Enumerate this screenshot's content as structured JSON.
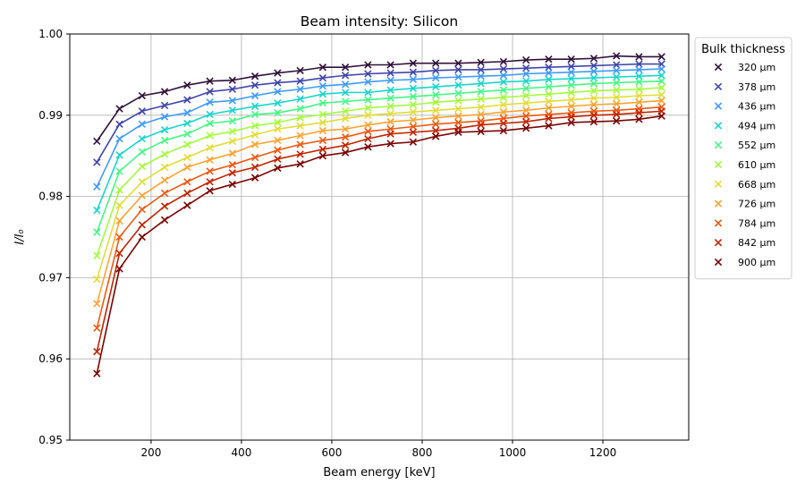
{
  "chart_data": {
    "type": "line",
    "title": "Beam intensity: Silicon",
    "xlabel": "Beam energy [keV]",
    "ylabel": "I/I₀",
    "xlim": [
      20,
      1390
    ],
    "ylim": [
      0.95,
      1.0
    ],
    "grid": true,
    "x_ticks": [
      200,
      400,
      600,
      800,
      1000,
      1200
    ],
    "x_tick_labels": [
      "200",
      "400",
      "600",
      "800",
      "1000",
      "1200"
    ],
    "y_ticks": [
      0.95,
      0.96,
      0.97,
      0.98,
      0.99,
      1.0
    ],
    "y_tick_labels": [
      "0.95",
      "0.96",
      "0.97",
      "0.98",
      "0.99",
      "1.00"
    ],
    "legend_title": "Bulk thickness",
    "legend_position": "outside-right",
    "marker": "x",
    "x": [
      80,
      130,
      180,
      230,
      280,
      330,
      380,
      430,
      480,
      530,
      580,
      630,
      680,
      730,
      780,
      830,
      880,
      930,
      980,
      1030,
      1080,
      1130,
      1180,
      1230,
      1280,
      1330
    ],
    "series": [
      {
        "name": "320 μm",
        "color": "#30123b",
        "values": [
          0.9868,
          0.9908,
          0.9924,
          0.9929,
          0.9937,
          0.9942,
          0.9943,
          0.9948,
          0.9952,
          0.9955,
          0.9959,
          0.9959,
          0.9962,
          0.9962,
          0.9964,
          0.9964,
          0.9964,
          0.9965,
          0.9966,
          0.9968,
          0.9969,
          0.9969,
          0.997,
          0.9973,
          0.9972,
          0.9972
        ]
      },
      {
        "name": "378 μm",
        "color": "#4145ab",
        "values": [
          0.9842,
          0.9889,
          0.9905,
          0.9912,
          0.9919,
          0.9929,
          0.9932,
          0.9937,
          0.994,
          0.9942,
          0.9946,
          0.9949,
          0.9951,
          0.9952,
          0.9953,
          0.9955,
          0.9956,
          0.9956,
          0.9957,
          0.9958,
          0.9959,
          0.996,
          0.9961,
          0.9962,
          0.9963,
          0.9963
        ]
      },
      {
        "name": "436 μm",
        "color": "#3e9bfe",
        "values": [
          0.9812,
          0.9871,
          0.9889,
          0.9898,
          0.9903,
          0.9916,
          0.9918,
          0.9924,
          0.9929,
          0.9932,
          0.9936,
          0.9938,
          0.9941,
          0.9943,
          0.9944,
          0.9946,
          0.9947,
          0.9948,
          0.9949,
          0.9951,
          0.9952,
          0.9953,
          0.9954,
          0.9955,
          0.9956,
          0.9957
        ]
      },
      {
        "name": "494 μm",
        "color": "#18d6cb",
        "values": [
          0.9783,
          0.9851,
          0.9871,
          0.9882,
          0.989,
          0.9901,
          0.9906,
          0.9911,
          0.9915,
          0.992,
          0.9926,
          0.9928,
          0.9928,
          0.9931,
          0.9933,
          0.9935,
          0.9937,
          0.9939,
          0.9941,
          0.9942,
          0.9944,
          0.9945,
          0.9946,
          0.9947,
          0.9948,
          0.9949
        ]
      },
      {
        "name": "552 μm",
        "color": "#46f884",
        "values": [
          0.9756,
          0.9831,
          0.9855,
          0.9869,
          0.9877,
          0.989,
          0.9893,
          0.9901,
          0.9903,
          0.9908,
          0.9915,
          0.9917,
          0.9919,
          0.9921,
          0.9923,
          0.9925,
          0.9927,
          0.9929,
          0.9931,
          0.9933,
          0.9935,
          0.9937,
          0.9939,
          0.994,
          0.9941,
          0.9942
        ]
      },
      {
        "name": "610 μm",
        "color": "#a2fc3c",
        "values": [
          0.9727,
          0.9808,
          0.9837,
          0.9852,
          0.9864,
          0.9875,
          0.988,
          0.9887,
          0.9891,
          0.9897,
          0.9901,
          0.9905,
          0.9909,
          0.9911,
          0.9913,
          0.9916,
          0.9918,
          0.992,
          0.9922,
          0.9924,
          0.9926,
          0.9928,
          0.993,
          0.9931,
          0.9932,
          0.9934
        ]
      },
      {
        "name": "668 μm",
        "color": "#e1dd37",
        "values": [
          0.9698,
          0.9789,
          0.9818,
          0.9836,
          0.9848,
          0.986,
          0.9868,
          0.9876,
          0.9883,
          0.9887,
          0.9891,
          0.9896,
          0.99,
          0.9902,
          0.9904,
          0.9906,
          0.9908,
          0.991,
          0.9913,
          0.9915,
          0.9917,
          0.9919,
          0.9921,
          0.9922,
          0.9924,
          0.9925
        ]
      },
      {
        "name": "726 μm",
        "color": "#fea331",
        "values": [
          0.9668,
          0.977,
          0.9801,
          0.982,
          0.9836,
          0.9845,
          0.9853,
          0.9864,
          0.9869,
          0.9875,
          0.9881,
          0.9883,
          0.9888,
          0.9892,
          0.9894,
          0.9897,
          0.9899,
          0.9901,
          0.9904,
          0.9906,
          0.9909,
          0.9911,
          0.9913,
          0.9914,
          0.9916,
          0.9918
        ]
      },
      {
        "name": "784 μm",
        "color": "#ef5911",
        "values": [
          0.9638,
          0.975,
          0.9784,
          0.9804,
          0.9818,
          0.9831,
          0.9839,
          0.9848,
          0.9857,
          0.9864,
          0.9869,
          0.9873,
          0.988,
          0.9883,
          0.9886,
          0.9889,
          0.9891,
          0.9893,
          0.9896,
          0.9899,
          0.9901,
          0.9903,
          0.9905,
          0.9906,
          0.9908,
          0.991
        ]
      },
      {
        "name": "842 μm",
        "color": "#c22402",
        "values": [
          0.9609,
          0.973,
          0.9765,
          0.9788,
          0.9804,
          0.9818,
          0.9829,
          0.9836,
          0.9846,
          0.9852,
          0.9858,
          0.9863,
          0.9871,
          0.9877,
          0.9879,
          0.9881,
          0.9884,
          0.9888,
          0.989,
          0.9892,
          0.9896,
          0.9898,
          0.99,
          0.9901,
          0.9903,
          0.9905
        ]
      },
      {
        "name": "900 μm",
        "color": "#7a0403",
        "values": [
          0.9582,
          0.9711,
          0.975,
          0.9771,
          0.9789,
          0.9807,
          0.9815,
          0.9823,
          0.9835,
          0.984,
          0.985,
          0.9854,
          0.9861,
          0.9865,
          0.9867,
          0.9874,
          0.9879,
          0.988,
          0.9881,
          0.9884,
          0.9887,
          0.9891,
          0.9892,
          0.9893,
          0.9895,
          0.9899
        ]
      }
    ]
  }
}
